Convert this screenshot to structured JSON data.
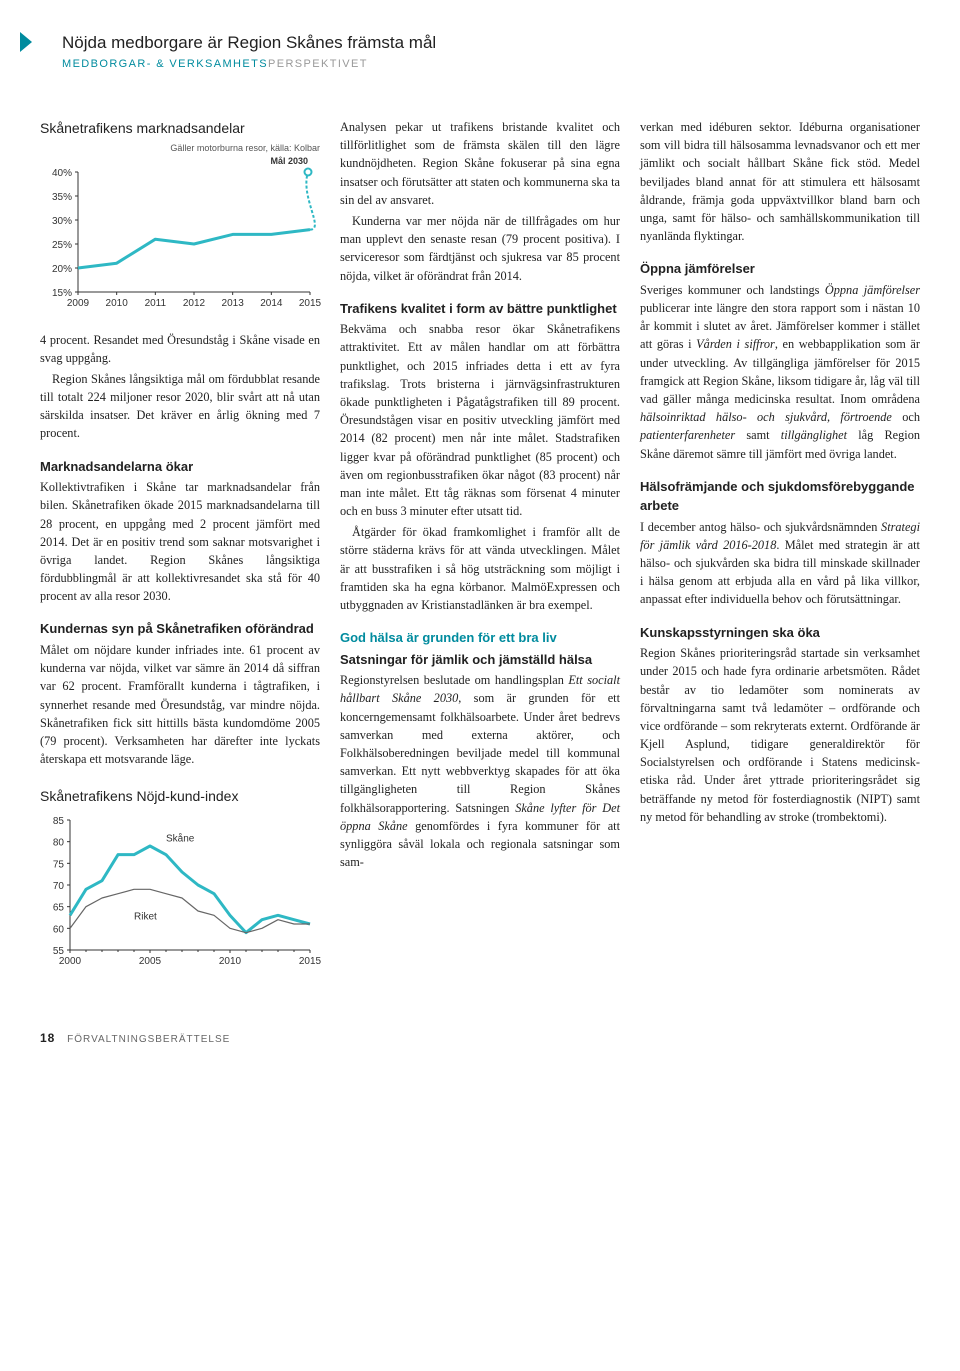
{
  "header": {
    "title": "Nöjda medborgare är Region Skånes främsta mål",
    "subtitle_main": "MEDBORGAR- & VERKSAMHETS",
    "subtitle_dim": "PERSPEKTIVET"
  },
  "chart1": {
    "title": "Skånetrafikens marknadsandelar",
    "subtitle": "Gäller motorburna resor, källa: Kolbar",
    "type": "line",
    "x_labels": [
      "2009",
      "2010",
      "2011",
      "2012",
      "2013",
      "2014",
      "2015"
    ],
    "y_labels": [
      "15%",
      "20%",
      "25%",
      "30%",
      "35%",
      "40%"
    ],
    "ylim": [
      15,
      40
    ],
    "values": [
      20,
      21,
      26,
      25,
      27,
      27,
      28
    ],
    "target_label": "Mål 2030",
    "target_value": 40,
    "line_color": "#2eb8c4",
    "line_width": 3,
    "axis_color": "#333",
    "font": "Arial",
    "label_fontsize": 10
  },
  "chart2": {
    "title": "Skånetrafikens Nöjd-kund-index",
    "type": "line",
    "x_labels": [
      "2000",
      "2005",
      "2010",
      "2015"
    ],
    "y_labels": [
      "55",
      "60",
      "65",
      "70",
      "75",
      "80",
      "85"
    ],
    "ylim": [
      55,
      85
    ],
    "series": [
      {
        "name": "Skåne",
        "color": "#2eb8c4",
        "width": 3,
        "points": [
          [
            2000,
            63
          ],
          [
            2001,
            69
          ],
          [
            2002,
            71
          ],
          [
            2003,
            77
          ],
          [
            2004,
            77
          ],
          [
            2005,
            79
          ],
          [
            2006,
            77
          ],
          [
            2007,
            73
          ],
          [
            2008,
            70
          ],
          [
            2009,
            68
          ],
          [
            2010,
            63
          ],
          [
            2011,
            59
          ],
          [
            2012,
            62
          ],
          [
            2013,
            63
          ],
          [
            2014,
            62
          ],
          [
            2015,
            61
          ]
        ]
      },
      {
        "name": "Riket",
        "color": "#666",
        "width": 1.2,
        "points": [
          [
            2000,
            60
          ],
          [
            2001,
            65
          ],
          [
            2002,
            67
          ],
          [
            2003,
            68
          ],
          [
            2004,
            69
          ],
          [
            2005,
            69
          ],
          [
            2006,
            68
          ],
          [
            2007,
            67
          ],
          [
            2008,
            64
          ],
          [
            2009,
            63
          ],
          [
            2010,
            60
          ],
          [
            2011,
            59
          ],
          [
            2012,
            60
          ],
          [
            2013,
            62
          ],
          [
            2014,
            61
          ],
          [
            2015,
            61
          ]
        ]
      }
    ],
    "axis_color": "#333",
    "label_fontsize": 10,
    "label_skane": "Skåne",
    "label_riket": "Riket"
  },
  "col1": {
    "p1": "4 procent. Resandet med Öresundståg i Skåne visade en svag uppgång.",
    "p2": "Region Skånes långsiktiga mål om fördubblat resande till totalt 224 miljoner resor 2020, blir svårt att nå utan särskilda insatser. Det kräver en årlig ökning med 7 procent.",
    "h1": "Marknadsandelarna ökar",
    "p3": "Kollektivtrafiken i Skåne tar marknadsandelar från bilen. Skånetrafiken ökade 2015 marknadsandelarna till 28 procent, en uppgång med 2 procent jämfört med 2014. Det är en positiv trend som saknar motsvarighet i övriga landet. Region Skånes långsiktiga fördubblingmål är att kollektivresandet ska stå för 40 procent av alla resor 2030.",
    "h2": "Kundernas syn på Skånetrafiken oförändrad",
    "p4": "Målet om nöjdare kunder infriades inte. 61 procent av kunderna var nöjda, vilket var sämre än 2014 då siffran var 62 procent. Framförallt kunderna i tågtrafiken, i synnerhet resande med Öresundståg, var mindre nöjda. Skånetrafiken fick sitt hittills bästa kundomdöme 2005 (79 procent). Verksamheten har därefter inte lyckats återskapa ett motsvarande läge."
  },
  "col2": {
    "p1": "Analysen pekar ut trafikens bristande kvalitet och tillförlitlighet som de främsta skälen till den lägre kundnöjdheten. Region Skåne fokuserar på sina egna insatser och förutsätter att staten och kommunerna ska ta sin del av ansvaret.",
    "p2": "Kunderna var mer nöjda när de tillfrågades om hur man upplevt den senaste resan (79 procent positiva). I serviceresor som färdtjänst och sjukresa var 85 procent nöjda, vilket är oförändrat från 2014.",
    "h1": "Trafikens kvalitet i form av bättre punktlighet",
    "p3": "Bekväma och snabba resor ökar Skånetrafikens attraktivitet. Ett av målen handlar om att förbättra punktlighet, och 2015 infriades detta i ett av fyra trafikslag. Trots bristerna i järnvägsinfrastrukturen ökade punktligheten i Pågatågstrafiken till 89 procent. Öresundstågen visar en positiv utveckling jämfört med 2014 (82 procent) men når inte målet. Stadstrafiken ligger kvar på oförändrad punktlighet (85 procent) och även om regionbusstrafiken ökar något (83 procent) når man inte målet. Ett tåg räknas som försenat 4 minuter och en buss 3 minuter efter utsatt tid.",
    "p4": "Åtgärder för ökad framkomlighet i framför allt de större städerna krävs för att vända utvecklingen. Målet är att busstrafiken i så hög utsträckning som möjligt i framtiden ska ha egna körbanor. MalmöExpressen och utbyggnaden av Kristianstadlänken är bra exempel.",
    "h2a": "God hälsa är grunden för ett bra liv",
    "h2b": "Satsningar för jämlik och jämställd hälsa",
    "p5": "Regionstyrelsen beslutade om handlingsplan <em>Ett socialt hållbart Skåne 2030</em>, som är grunden för ett koncerngemensamt folkhälsoarbete. Under året bedrevs samverkan med externa aktörer, och Folkhälsoberedningen beviljade medel till kommunal samverkan. Ett nytt webbverktyg skapades för att öka tillgängligheten till Region Skånes folkhälsorapportering. Satsningen <em>Skåne lyfter för Det öppna Skåne</em> genomfördes i fyra kommuner för att synliggöra såväl lokala och regionala satsningar som sam-"
  },
  "col3": {
    "p1": "verkan med idéburen sektor. Idéburna organisationer som vill bidra till hälsosamma levnadsvanor och ett mer jämlikt och socialt hållbart Skåne fick stöd. Medel beviljades bland annat för att stimulera ett hälsosamt åldrande, främja goda uppväxtvillkor bland barn och unga, samt för hälso- och samhällskommunikation till nyanlända flyktingar.",
    "h1": "Öppna jämförelser",
    "p2": "Sveriges kommuner och landstings <em>Öppna jämförelser</em> publicerar inte längre den stora rapport som i nästan 10 år kommit i slutet av året. Jämförelser kommer i stället att göras i <em>Vården i siffror</em>, en webbapplikation som är under utveckling. Av tillgängliga jämförelser för 2015 framgick att Region Skåne, liksom tidigare år, låg väl till vad gäller många medicinska resultat. Inom områdena <em>hälsoinriktad hälso- och sjukvård, förtroende</em> och <em>patienterfarenheter</em> samt <em>tillgänglighet</em> låg Region Skåne däremot sämre till jämfört med övriga landet.",
    "h2": "Hälsofrämjande och sjukdomsförebyggande arbete",
    "p3": "I december antog hälso- och sjukvårdsnämnden <em>Strategi för jämlik vård 2016-2018</em>. Målet med strategin är att hälso- och sjukvården ska bidra till minskade skillnader i hälsa genom att erbjuda alla en vård på lika villkor, anpassat efter individuella behov och förutsättningar.",
    "h3": "Kunskapsstyrningen ska öka",
    "p4": "Region Skånes prioriteringsråd startade sin verksamhet under 2015 och hade fyra ordinarie arbetsmöten. Rådet består av tio ledamöter som nominerats av förvaltningarna samt två ledamöter – ordförande och vice ordförande – som rekryterats externt. Ordförande är Kjell Asplund, tidigare generaldirektör för Socialstyrelsen och ordförande i Statens medicinsk-etiska råd. Under året yttrade prioriteringsrådet sig beträffande ny metod för fosterdiagnostik (NIPT) samt ny metod för behandling av stroke (trombektomi)."
  },
  "footer": {
    "page": "18",
    "label": "FÖRVALTNINGSBERÄTTELSE"
  }
}
